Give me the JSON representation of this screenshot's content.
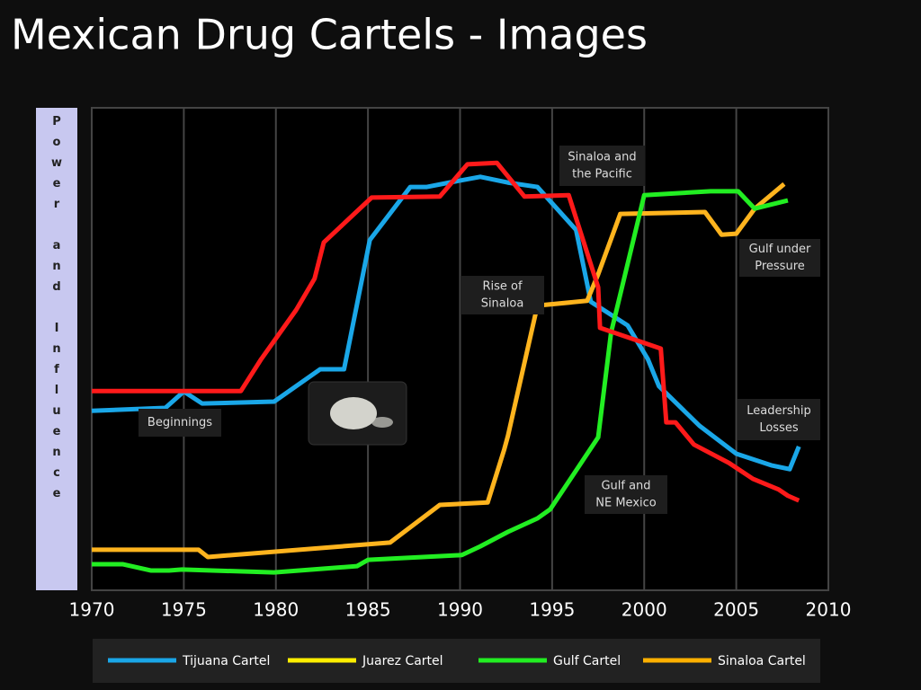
{
  "chart_data": {
    "type": "line",
    "title": "Mexican Drug Cartels - Images",
    "ylabel": "Power and Influence",
    "xlim": [
      1970,
      2010
    ],
    "xticks": [
      1970,
      1975,
      1980,
      1985,
      1990,
      1995,
      2000,
      2005,
      2010
    ],
    "ylim": [
      0,
      100
    ],
    "grid": true,
    "series": [
      {
        "name": "Tijuana Cartel",
        "color": "#1aa7e8",
        "legend_color": "#1aa7e8",
        "x": [
          1970,
          1974.0,
          1975.0,
          1976.0,
          1979.9,
          1982.4,
          1983.7,
          1985.1,
          1987.3,
          1988.2,
          1989.4,
          1991.1,
          1992.6,
          1994.2,
          1996.3,
          1997.1,
          1999.1,
          2000.2,
          2000.8,
          2003.0,
          2005.0,
          2006.9,
          2007.9,
          2008.4
        ],
        "values": [
          37.2,
          37.8,
          41.2,
          38.7,
          39.1,
          45.8,
          45.8,
          72.6,
          83.6,
          83.6,
          84.5,
          85.7,
          84.5,
          83.6,
          74.7,
          59.8,
          54.9,
          47.9,
          42.3,
          34.1,
          28.3,
          25.9,
          25.1,
          29.8
        ]
      },
      {
        "name": "Juarez Cartel",
        "color": "#ffb41e",
        "legend_color": "#ffee00",
        "x": [
          1970,
          1975.8,
          1976.3,
          1986.2,
          1988.9,
          1991.5,
          1992.4,
          1992.6,
          1994.2,
          1996.9,
          1997.5,
          1998.7,
          2003.3,
          2004.2,
          2005.0,
          2006.0,
          2007.6
        ],
        "values": [
          8.4,
          8.4,
          6.9,
          9.9,
          17.7,
          18.2,
          29.2,
          32.0,
          59.0,
          60.0,
          65.5,
          78.0,
          78.4,
          73.7,
          73.9,
          79.1,
          84.2
        ]
      },
      {
        "name": "Gulf Cartel",
        "color": "#22ee22",
        "legend_color": "#22ee22",
        "x": [
          1970,
          1971.7,
          1973.2,
          1974.2,
          1974.9,
          1979.9,
          1984.4,
          1985.0,
          1990.1,
          1991.1,
          1992.6,
          1994.2,
          1994.9,
          1997.5,
          1998.2,
          2000.0,
          2003.6,
          2005.1,
          2006.0,
          2007.8
        ],
        "values": [
          5.4,
          5.4,
          4.1,
          4.1,
          4.3,
          3.7,
          5.0,
          6.3,
          7.3,
          9.1,
          12.1,
          14.9,
          16.8,
          31.7,
          53.4,
          81.9,
          82.7,
          82.7,
          79.1,
          80.8
        ]
      },
      {
        "name": "Sinaloa Cartel",
        "color": "#ff1a1a",
        "legend_color": "#ffb000",
        "x": [
          1970,
          1978.1,
          1979.2,
          1981.1,
          1982.1,
          1982.6,
          1985.2,
          1988.9,
          1990.4,
          1992.0,
          1993.5,
          1995.9,
          1997.5,
          1997.6,
          2000.9,
          2001.2,
          2001.7,
          2002.7,
          2004.6,
          2005.9,
          2007.3,
          2007.8,
          2008.4
        ],
        "values": [
          41.3,
          41.3,
          47.9,
          58.1,
          64.6,
          72.1,
          81.4,
          81.6,
          88.3,
          88.6,
          81.6,
          81.9,
          62.8,
          54.4,
          50.1,
          34.8,
          34.8,
          30.2,
          26.4,
          23.1,
          20.9,
          19.6,
          18.6
        ]
      }
    ],
    "annotations": [
      {
        "lines": [
          "Sinaloa and",
          "the Pacific"
        ]
      },
      {
        "lines": [
          "Gulf under",
          "Pressure"
        ]
      },
      {
        "lines": [
          "Rise of",
          "Sinaloa"
        ]
      },
      {
        "lines": [
          "Beginnings"
        ]
      },
      {
        "lines": [
          "Leadership",
          "Losses"
        ]
      },
      {
        "lines": [
          "Gulf and",
          "NE Mexico"
        ]
      }
    ]
  }
}
